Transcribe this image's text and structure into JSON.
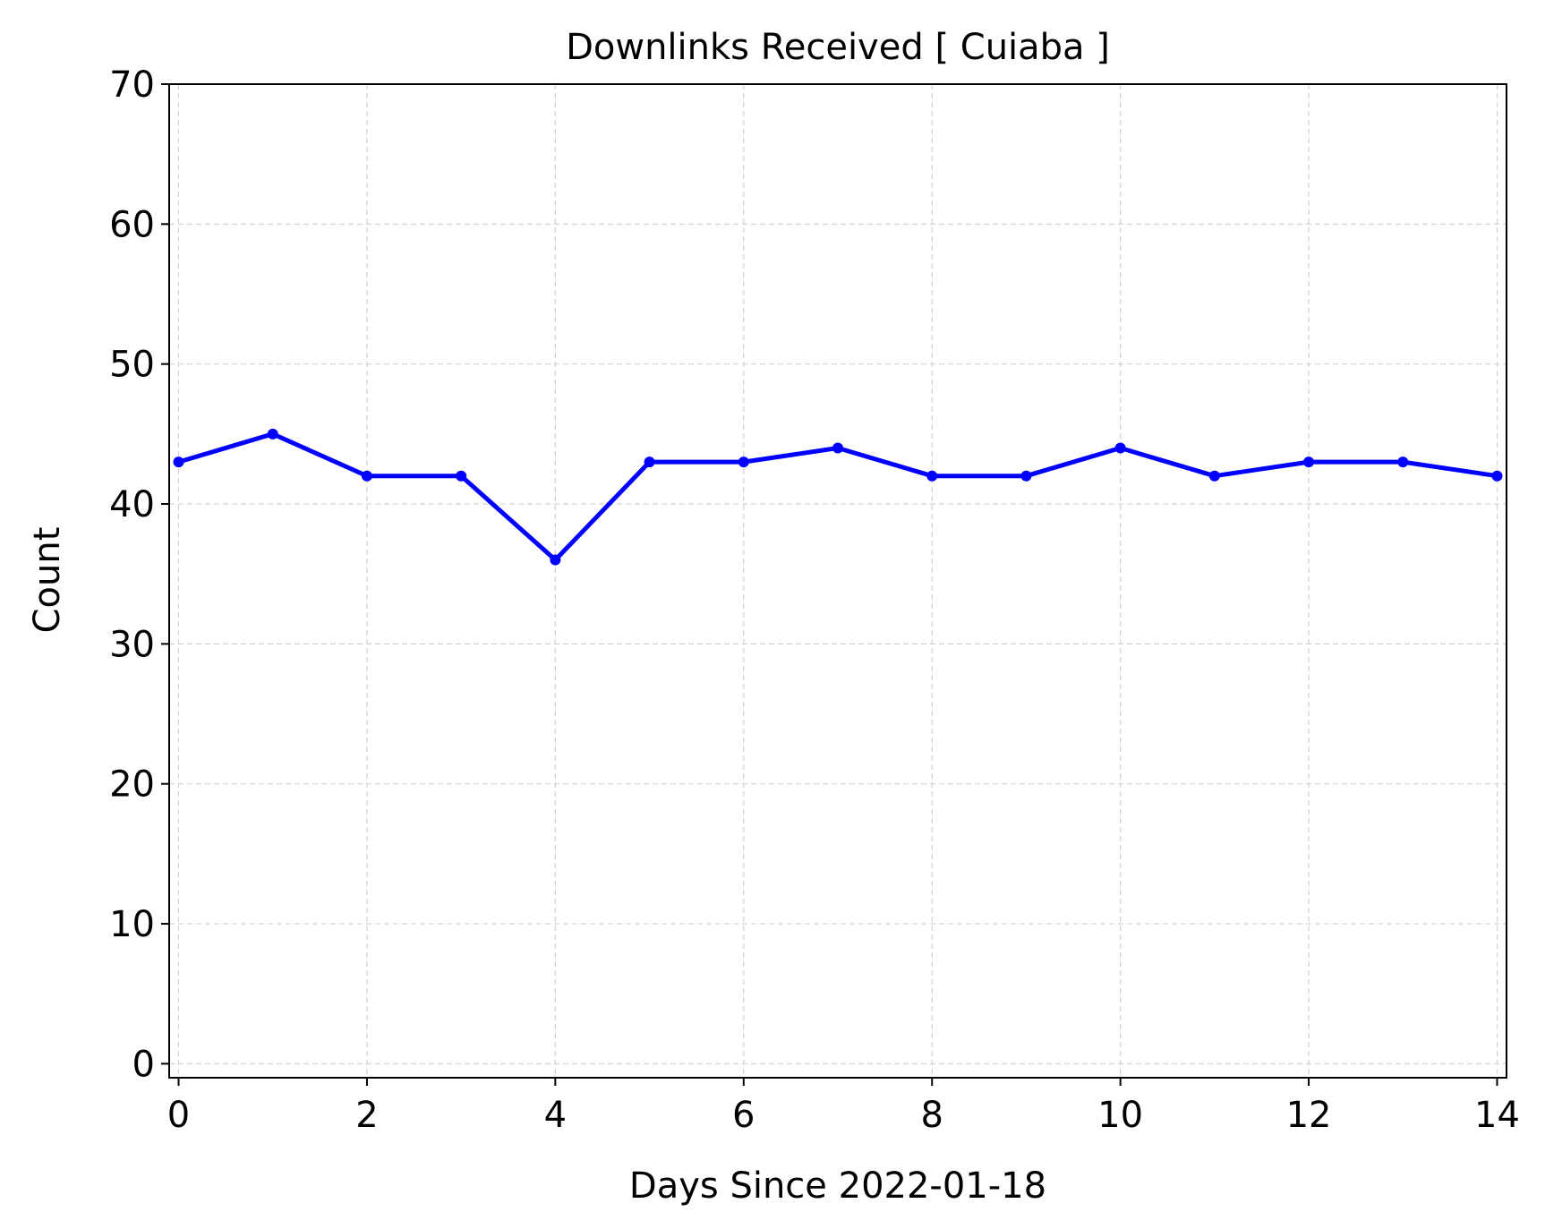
{
  "chart_data": {
    "type": "line",
    "title": "Downlinks Received [ Cuiaba ]",
    "xlabel": "Days Since 2022-01-18",
    "ylabel": "Count",
    "xlim": [
      -0.1,
      14.1
    ],
    "ylim": [
      -1,
      70
    ],
    "xticks": [
      0,
      2,
      4,
      6,
      8,
      10,
      12,
      14
    ],
    "yticks": [
      0,
      10,
      20,
      30,
      40,
      50,
      60,
      70
    ],
    "grid": true,
    "series": [
      {
        "color": "#0000ff",
        "x": [
          0,
          1,
          2,
          3,
          4,
          5,
          6,
          7,
          8,
          9,
          10,
          11,
          12,
          13,
          14
        ],
        "y": [
          43,
          45,
          42,
          42,
          36,
          43,
          43,
          44,
          42,
          42,
          44,
          42,
          43,
          43,
          42
        ]
      }
    ]
  }
}
